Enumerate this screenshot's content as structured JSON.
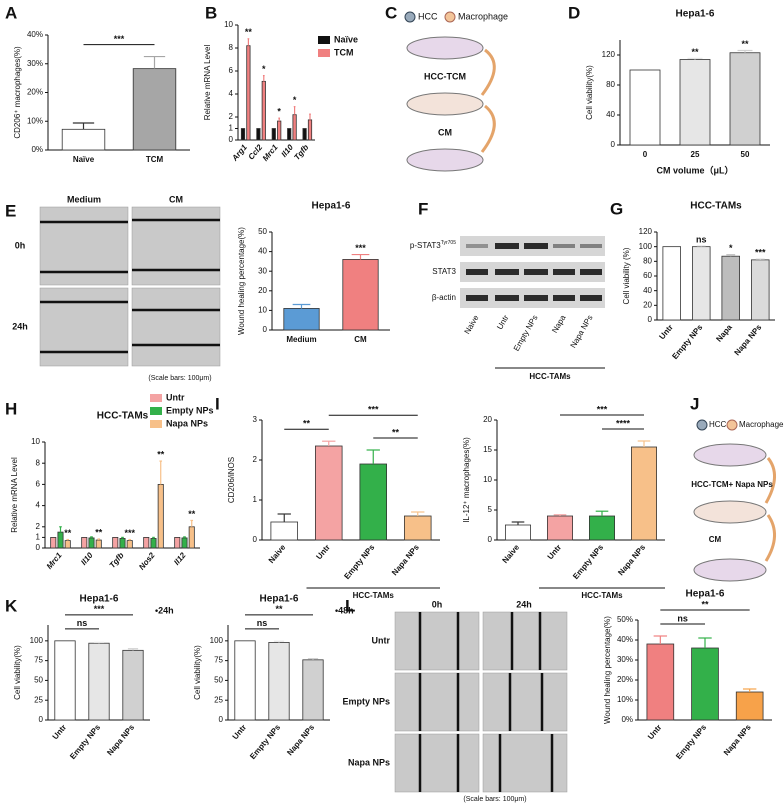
{
  "panel_labels": [
    "A",
    "B",
    "C",
    "D",
    "E",
    "F",
    "G",
    "H",
    "I",
    "J",
    "K",
    "L"
  ],
  "schematic_c": {
    "legend": [
      "HCC",
      "Macrophage"
    ],
    "steps": [
      "HCC-TCM",
      "CM"
    ]
  },
  "wound_e": {
    "columns": [
      "Medium",
      "CM"
    ],
    "rows": [
      "0h",
      "24h"
    ],
    "scale": "(Scale bars: 100μm)"
  },
  "blot_f": {
    "rows": [
      "p-STAT3",
      "STAT3",
      "β-actin"
    ],
    "superscript": "Tyr705",
    "columns": [
      "Naive",
      "Untr",
      "Empty NPs",
      "Napa",
      "Napa NPs"
    ],
    "group": "HCC-TAMs"
  },
  "schematic_j": {
    "legend": [
      "HCC",
      "Macrophage"
    ],
    "steps": [
      "HCC-TCM+ Napa NPs",
      "CM"
    ]
  },
  "wound_l": {
    "columns": [
      "0h",
      "24h"
    ],
    "rows": [
      "Untr",
      "Empty NPs",
      "Napa NPs"
    ],
    "scale": "(Scale bars: 100μm)"
  },
  "chart_data": [
    {
      "type": "bar",
      "ylabel": "CD206⁺ macrophages(%)",
      "categories": [
        "Naïve",
        "TCM"
      ],
      "values": [
        7.2,
        28.3
      ],
      "errors": [
        2.2,
        4.2
      ],
      "colors": [
        "#ffffff",
        "#a6a6a6"
      ],
      "ylim": [
        0,
        40
      ],
      "yticks": [
        {
          "value": 0,
          "label": "0%"
        },
        {
          "value": 10,
          "label": "10%"
        },
        {
          "value": 20,
          "label": "20%"
        },
        {
          "value": 30,
          "label": "30%"
        },
        {
          "value": 40,
          "label": "40%"
        }
      ],
      "brackets": [
        {
          "between": [
            "Naïve",
            "TCM"
          ],
          "label": "***"
        }
      ]
    },
    {
      "type": "bar",
      "ylabel": "Relative mRNA Level",
      "categories": [
        "Arg1",
        "Ccl2",
        "Mrc1",
        "Il10",
        "Tgfb"
      ],
      "italic_labels": true,
      "rotate_labels": true,
      "series": [
        {
          "name": "Naïve",
          "color": "#111111",
          "values": [
            1,
            1,
            1,
            1,
            1
          ],
          "errors": [
            0,
            0,
            0,
            0,
            0
          ]
        },
        {
          "name": "TCM",
          "color": "#f08080",
          "values": [
            8.2,
            5.1,
            1.65,
            2.2,
            1.75
          ],
          "errors": [
            0.6,
            0.5,
            0.25,
            0.7,
            0.5
          ],
          "stars": [
            "**",
            "*",
            "*",
            "*",
            null
          ]
        }
      ],
      "ylim": [
        0,
        10
      ],
      "yticks": [
        0,
        1,
        2,
        4,
        6,
        8,
        10
      ]
    },
    {
      "type": "bar",
      "title": "Hepa1-6",
      "ylabel": "Cell viability(%)",
      "xlabel": "CM volume（μL）",
      "categories": [
        "0",
        "25",
        "50"
      ],
      "values": [
        100,
        114,
        123
      ],
      "errors": [
        0,
        1.5,
        3
      ],
      "colors": [
        "#ffffff",
        "#e6e6e6",
        "#d0d0d0"
      ],
      "stars": [
        null,
        "**",
        "**"
      ],
      "ylim": [
        0,
        140
      ],
      "yticks": [
        0,
        40,
        80,
        120
      ]
    },
    {
      "type": "bar",
      "title": "Hepa1-6",
      "ylabel": "Wound healing percentage(%)",
      "categories": [
        "Medium",
        "CM"
      ],
      "values": [
        11,
        36
      ],
      "errors": [
        2,
        2.5
      ],
      "colors": [
        "#5b9bd5",
        "#f08080"
      ],
      "stars": [
        null,
        "***"
      ],
      "ylim": [
        0,
        50
      ],
      "yticks": [
        0,
        10,
        20,
        30,
        40,
        50
      ]
    },
    {
      "type": "bar",
      "title": "HCC-TAMs",
      "ylabel": "Cell viability (%)",
      "categories": [
        "Untr",
        "Empty NPs",
        "Napa",
        "Napa NPs"
      ],
      "rotate_labels": true,
      "values": [
        100,
        100,
        87,
        82
      ],
      "errors": [
        0,
        1,
        2,
        1
      ],
      "colors": [
        "#ffffff",
        "#e6e6e6",
        "#bdbdbd",
        "#dadada"
      ],
      "stars": [
        null,
        "ns",
        "*",
        "***"
      ],
      "ylim": [
        0,
        120
      ],
      "yticks": [
        0,
        20,
        40,
        60,
        80,
        100,
        120
      ]
    },
    {
      "type": "bar",
      "title": "HCC-TAMs",
      "ylabel": "Relative mRNA Level",
      "categories": [
        "Mrc1",
        "Il10",
        "Tgfb",
        "Nos2",
        "Il12"
      ],
      "italic_labels": true,
      "rotate_labels": true,
      "series": [
        {
          "name": "Untr",
          "color": "#f4a3a3",
          "values": [
            1,
            1,
            1,
            1,
            1
          ],
          "errors": [
            0,
            0,
            0,
            0,
            0
          ]
        },
        {
          "name": "Empty NPs",
          "color": "#33b04a",
          "values": [
            1.5,
            0.95,
            0.9,
            0.9,
            0.95
          ],
          "errors": [
            0.5,
            0.1,
            0.1,
            0.1,
            0.1
          ]
        },
        {
          "name": "Napa NPs",
          "color": "#f7c089",
          "values": [
            0.7,
            0.75,
            0.7,
            6,
            2
          ],
          "errors": [
            0.1,
            0.1,
            0.1,
            2.2,
            0.6
          ],
          "stars": [
            "**",
            "**",
            "***",
            "**",
            "**"
          ]
        }
      ],
      "ylim": [
        0,
        10
      ],
      "yticks": [
        0,
        1,
        2,
        4,
        6,
        8,
        10
      ]
    },
    {
      "type": "bar",
      "ylabel": "CD206/iNOS",
      "categories": [
        "Naive",
        "Untr",
        "Empty NPs",
        "Napa NPs"
      ],
      "rotate_labels": true,
      "values": [
        0.45,
        2.35,
        1.9,
        0.6
      ],
      "errors": [
        0.2,
        0.12,
        0.35,
        0.1
      ],
      "colors": [
        "#ffffff",
        "#f4a3a3",
        "#33b04a",
        "#f7c089"
      ],
      "ylim": [
        0,
        3
      ],
      "yticks": [
        0,
        1,
        2,
        3
      ],
      "group_label": "HCC-TAMs",
      "brackets": [
        {
          "between": [
            "Naive",
            "Untr"
          ],
          "label": "**"
        },
        {
          "between": [
            "Empty NPs",
            "Napa NPs"
          ],
          "label": "**"
        },
        {
          "between": [
            "Untr",
            "Napa NPs"
          ],
          "label": "***"
        }
      ]
    },
    {
      "type": "bar",
      "ylabel": "IL-12⁺ macrophages(%)",
      "categories": [
        "Naive",
        "Untr",
        "Empty NPs",
        "Napa NPs"
      ],
      "rotate_labels": true,
      "values": [
        2.5,
        4,
        4,
        15.5
      ],
      "errors": [
        0.5,
        0.2,
        0.8,
        1
      ],
      "colors": [
        "#ffffff",
        "#f4a3a3",
        "#33b04a",
        "#f7c089"
      ],
      "ylim": [
        0,
        20
      ],
      "yticks": [
        0,
        5,
        10,
        15,
        20
      ],
      "group_label": "HCC-TAMs",
      "brackets": [
        {
          "between": [
            "Empty NPs",
            "Napa NPs"
          ],
          "label": "****"
        },
        {
          "between": [
            "Untr",
            "Napa NPs"
          ],
          "label": "***"
        }
      ]
    },
    {
      "type": "bar",
      "title": "Hepa1-6",
      "note": "•24h",
      "ylabel": "Cell viability(%)",
      "categories": [
        "Untr",
        "Empty NPs",
        "Napa NPs"
      ],
      "rotate_labels": true,
      "values": [
        100,
        97,
        88
      ],
      "errors": [
        0,
        1,
        2
      ],
      "colors": [
        "#ffffff",
        "#e6e6e6",
        "#d0d0d0"
      ],
      "ylim": [
        0,
        120
      ],
      "yticks": [
        0,
        25,
        50,
        75,
        100
      ],
      "brackets": [
        {
          "between": [
            "Untr",
            "Empty NPs"
          ],
          "label": "ns"
        },
        {
          "between": [
            "Untr",
            "Napa NPs"
          ],
          "label": "***"
        }
      ]
    },
    {
      "type": "bar",
      "title": "Hepa1-6",
      "note": "•48h",
      "ylabel": "Cell viability(%)",
      "categories": [
        "Untr",
        "Empty NPs",
        "Napa NPs"
      ],
      "rotate_labels": true,
      "values": [
        100,
        98,
        76
      ],
      "errors": [
        0,
        1.5,
        1.5
      ],
      "colors": [
        "#ffffff",
        "#e6e6e6",
        "#d0d0d0"
      ],
      "ylim": [
        0,
        120
      ],
      "yticks": [
        0,
        25,
        50,
        75,
        100
      ],
      "brackets": [
        {
          "between": [
            "Untr",
            "Empty NPs"
          ],
          "label": "ns"
        },
        {
          "between": [
            "Untr",
            "Napa NPs"
          ],
          "label": "**"
        }
      ]
    },
    {
      "type": "bar",
      "title": "Hepa1-6",
      "ylabel": "Wound healing percentage(%)",
      "categories": [
        "Untr",
        "Empty NPs",
        "Napa NPs"
      ],
      "rotate_labels": true,
      "values": [
        38,
        36,
        14
      ],
      "errors": [
        4,
        5,
        1.5
      ],
      "colors": [
        "#f08080",
        "#33b04a",
        "#f7a24a"
      ],
      "ylim": [
        0,
        50
      ],
      "yticks": [
        {
          "value": 0,
          "label": "0%"
        },
        {
          "value": 10,
          "label": "10%"
        },
        {
          "value": 20,
          "label": "20%"
        },
        {
          "value": 30,
          "label": "30%"
        },
        {
          "value": 40,
          "label": "40%"
        },
        {
          "value": 50,
          "label": "50%"
        }
      ],
      "brackets": [
        {
          "between": [
            "Untr",
            "Empty NPs"
          ],
          "label": "ns"
        },
        {
          "between": [
            "Untr",
            "Napa NPs"
          ],
          "label": "**"
        }
      ]
    }
  ]
}
